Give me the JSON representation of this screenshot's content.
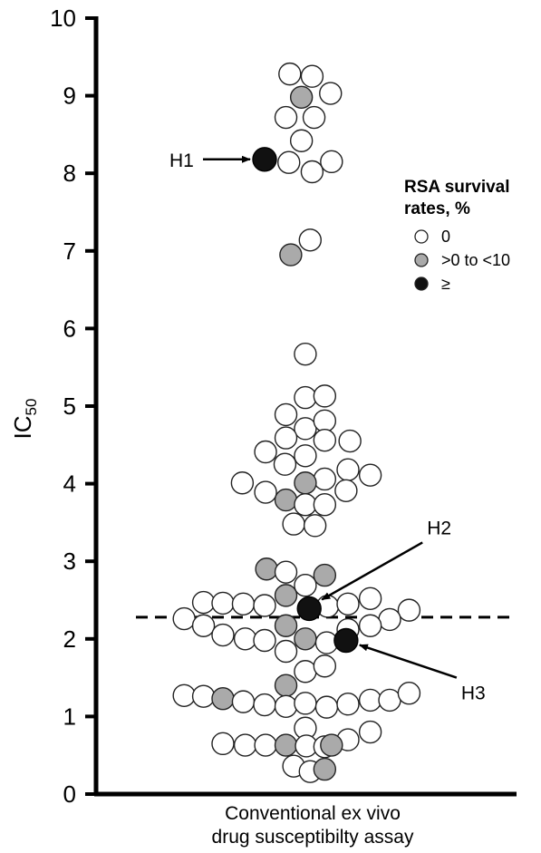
{
  "chart_data": {
    "type": "scatter",
    "title": "",
    "ylabel": "IC",
    "ylabel_sub": "50",
    "xlabel_lines": [
      "Conventional ex vivo",
      "drug susceptibilty assay"
    ],
    "ylim": [
      0,
      10
    ],
    "yticks": [
      0,
      1,
      2,
      3,
      4,
      5,
      6,
      7,
      8,
      9,
      10
    ],
    "threshold": 2.28,
    "legend": {
      "title_lines": [
        "RSA survival",
        "rates, %"
      ],
      "entries": [
        {
          "label": "0",
          "color": "#ffffff"
        },
        {
          "label": ">0 to <10",
          "color": "#aaaaaa"
        },
        {
          "label": "≥",
          "color": "#111111"
        }
      ],
      "placement": "right"
    },
    "category_colors": {
      "white": "#ffffff",
      "gray": "#aaaaaa",
      "black": "#111111"
    },
    "annotations": [
      {
        "label": "H1",
        "target": 0
      },
      {
        "label": "H2",
        "target": 1
      },
      {
        "label": "H3",
        "target": 2
      }
    ],
    "highlighted": [
      {
        "x": -0.43,
        "y": 8.18,
        "cat": "black"
      },
      {
        "x": 0.03,
        "y": 2.39,
        "cat": "black"
      },
      {
        "x": 0.41,
        "y": 1.98,
        "cat": "black"
      }
    ],
    "points": [
      {
        "x": -0.17,
        "y": 9.28,
        "cat": "white"
      },
      {
        "x": 0.06,
        "y": 9.25,
        "cat": "white"
      },
      {
        "x": -0.05,
        "y": 8.98,
        "cat": "gray"
      },
      {
        "x": 0.25,
        "y": 9.03,
        "cat": "white"
      },
      {
        "x": -0.21,
        "y": 8.72,
        "cat": "white"
      },
      {
        "x": 0.08,
        "y": 8.72,
        "cat": "white"
      },
      {
        "x": -0.05,
        "y": 8.42,
        "cat": "white"
      },
      {
        "x": -0.18,
        "y": 8.14,
        "cat": "white"
      },
      {
        "x": 0.06,
        "y": 8.02,
        "cat": "white"
      },
      {
        "x": 0.26,
        "y": 8.15,
        "cat": "white"
      },
      {
        "x": 0.04,
        "y": 7.14,
        "cat": "white"
      },
      {
        "x": -0.16,
        "y": 6.95,
        "cat": "gray"
      },
      {
        "x": -0.01,
        "y": 5.67,
        "cat": "white"
      },
      {
        "x": -0.01,
        "y": 5.11,
        "cat": "white"
      },
      {
        "x": 0.19,
        "y": 5.13,
        "cat": "white"
      },
      {
        "x": -0.21,
        "y": 4.89,
        "cat": "white"
      },
      {
        "x": -0.01,
        "y": 4.71,
        "cat": "white"
      },
      {
        "x": 0.19,
        "y": 4.81,
        "cat": "white"
      },
      {
        "x": -0.21,
        "y": 4.59,
        "cat": "white"
      },
      {
        "x": 0.19,
        "y": 4.56,
        "cat": "white"
      },
      {
        "x": 0.45,
        "y": 4.55,
        "cat": "white"
      },
      {
        "x": -0.42,
        "y": 4.41,
        "cat": "white"
      },
      {
        "x": -0.01,
        "y": 4.36,
        "cat": "white"
      },
      {
        "x": -0.22,
        "y": 4.25,
        "cat": "white"
      },
      {
        "x": 0.43,
        "y": 4.18,
        "cat": "white"
      },
      {
        "x": 0.66,
        "y": 4.11,
        "cat": "white"
      },
      {
        "x": 0.19,
        "y": 4.06,
        "cat": "white"
      },
      {
        "x": -0.01,
        "y": 4.01,
        "cat": "gray"
      },
      {
        "x": -0.66,
        "y": 4.01,
        "cat": "white"
      },
      {
        "x": -0.42,
        "y": 3.89,
        "cat": "white"
      },
      {
        "x": 0.41,
        "y": 3.91,
        "cat": "white"
      },
      {
        "x": -0.21,
        "y": 3.79,
        "cat": "gray"
      },
      {
        "x": -0.01,
        "y": 3.73,
        "cat": "white"
      },
      {
        "x": 0.19,
        "y": 3.73,
        "cat": "white"
      },
      {
        "x": -0.13,
        "y": 3.48,
        "cat": "white"
      },
      {
        "x": 0.09,
        "y": 3.46,
        "cat": "white"
      },
      {
        "x": -0.41,
        "y": 2.9,
        "cat": "gray"
      },
      {
        "x": -0.21,
        "y": 2.86,
        "cat": "white"
      },
      {
        "x": 0.19,
        "y": 2.82,
        "cat": "gray"
      },
      {
        "x": -0.01,
        "y": 2.69,
        "cat": "white"
      },
      {
        "x": -0.21,
        "y": 2.56,
        "cat": "gray"
      },
      {
        "x": 0.66,
        "y": 2.52,
        "cat": "white"
      },
      {
        "x": -1.06,
        "y": 2.47,
        "cat": "white"
      },
      {
        "x": -0.86,
        "y": 2.46,
        "cat": "white"
      },
      {
        "x": -0.65,
        "y": 2.45,
        "cat": "white"
      },
      {
        "x": -0.43,
        "y": 2.43,
        "cat": "white"
      },
      {
        "x": 0.22,
        "y": 2.42,
        "cat": "white"
      },
      {
        "x": 0.43,
        "y": 2.45,
        "cat": "white"
      },
      {
        "x": 1.06,
        "y": 2.37,
        "cat": "white"
      },
      {
        "x": -1.26,
        "y": 2.26,
        "cat": "white"
      },
      {
        "x": 0.86,
        "y": 2.25,
        "cat": "white"
      },
      {
        "x": -1.06,
        "y": 2.17,
        "cat": "white"
      },
      {
        "x": -0.21,
        "y": 2.17,
        "cat": "gray"
      },
      {
        "x": 0.66,
        "y": 2.17,
        "cat": "white"
      },
      {
        "x": 0.43,
        "y": 2.12,
        "cat": "white"
      },
      {
        "x": -0.86,
        "y": 2.05,
        "cat": "white"
      },
      {
        "x": -0.63,
        "y": 2.0,
        "cat": "white"
      },
      {
        "x": -0.43,
        "y": 1.98,
        "cat": "white"
      },
      {
        "x": -0.01,
        "y": 2.0,
        "cat": "gray"
      },
      {
        "x": 0.21,
        "y": 1.95,
        "cat": "white"
      },
      {
        "x": -0.21,
        "y": 1.84,
        "cat": "white"
      },
      {
        "x": -0.01,
        "y": 1.58,
        "cat": "white"
      },
      {
        "x": 0.19,
        "y": 1.65,
        "cat": "white"
      },
      {
        "x": -0.21,
        "y": 1.4,
        "cat": "gray"
      },
      {
        "x": -1.26,
        "y": 1.27,
        "cat": "white"
      },
      {
        "x": -1.06,
        "y": 1.26,
        "cat": "white"
      },
      {
        "x": -0.86,
        "y": 1.23,
        "cat": "gray"
      },
      {
        "x": -0.65,
        "y": 1.19,
        "cat": "white"
      },
      {
        "x": -0.43,
        "y": 1.15,
        "cat": "white"
      },
      {
        "x": -0.21,
        "y": 1.13,
        "cat": "white"
      },
      {
        "x": -0.01,
        "y": 1.17,
        "cat": "white"
      },
      {
        "x": 0.21,
        "y": 1.12,
        "cat": "white"
      },
      {
        "x": 0.43,
        "y": 1.16,
        "cat": "white"
      },
      {
        "x": 0.66,
        "y": 1.21,
        "cat": "white"
      },
      {
        "x": 0.86,
        "y": 1.21,
        "cat": "white"
      },
      {
        "x": 1.06,
        "y": 1.3,
        "cat": "white"
      },
      {
        "x": -0.01,
        "y": 0.85,
        "cat": "white"
      },
      {
        "x": 0.66,
        "y": 0.8,
        "cat": "white"
      },
      {
        "x": 0.43,
        "y": 0.7,
        "cat": "white"
      },
      {
        "x": -0.86,
        "y": 0.65,
        "cat": "white"
      },
      {
        "x": -0.63,
        "y": 0.63,
        "cat": "white"
      },
      {
        "x": -0.42,
        "y": 0.63,
        "cat": "white"
      },
      {
        "x": -0.21,
        "y": 0.63,
        "cat": "gray"
      },
      {
        "x": 0.0,
        "y": 0.62,
        "cat": "white"
      },
      {
        "x": 0.19,
        "y": 0.61,
        "cat": "white"
      },
      {
        "x": 0.26,
        "y": 0.63,
        "cat": "gray"
      },
      {
        "x": -0.13,
        "y": 0.36,
        "cat": "white"
      },
      {
        "x": 0.04,
        "y": 0.29,
        "cat": "white"
      },
      {
        "x": 0.19,
        "y": 0.32,
        "cat": "gray"
      }
    ]
  }
}
